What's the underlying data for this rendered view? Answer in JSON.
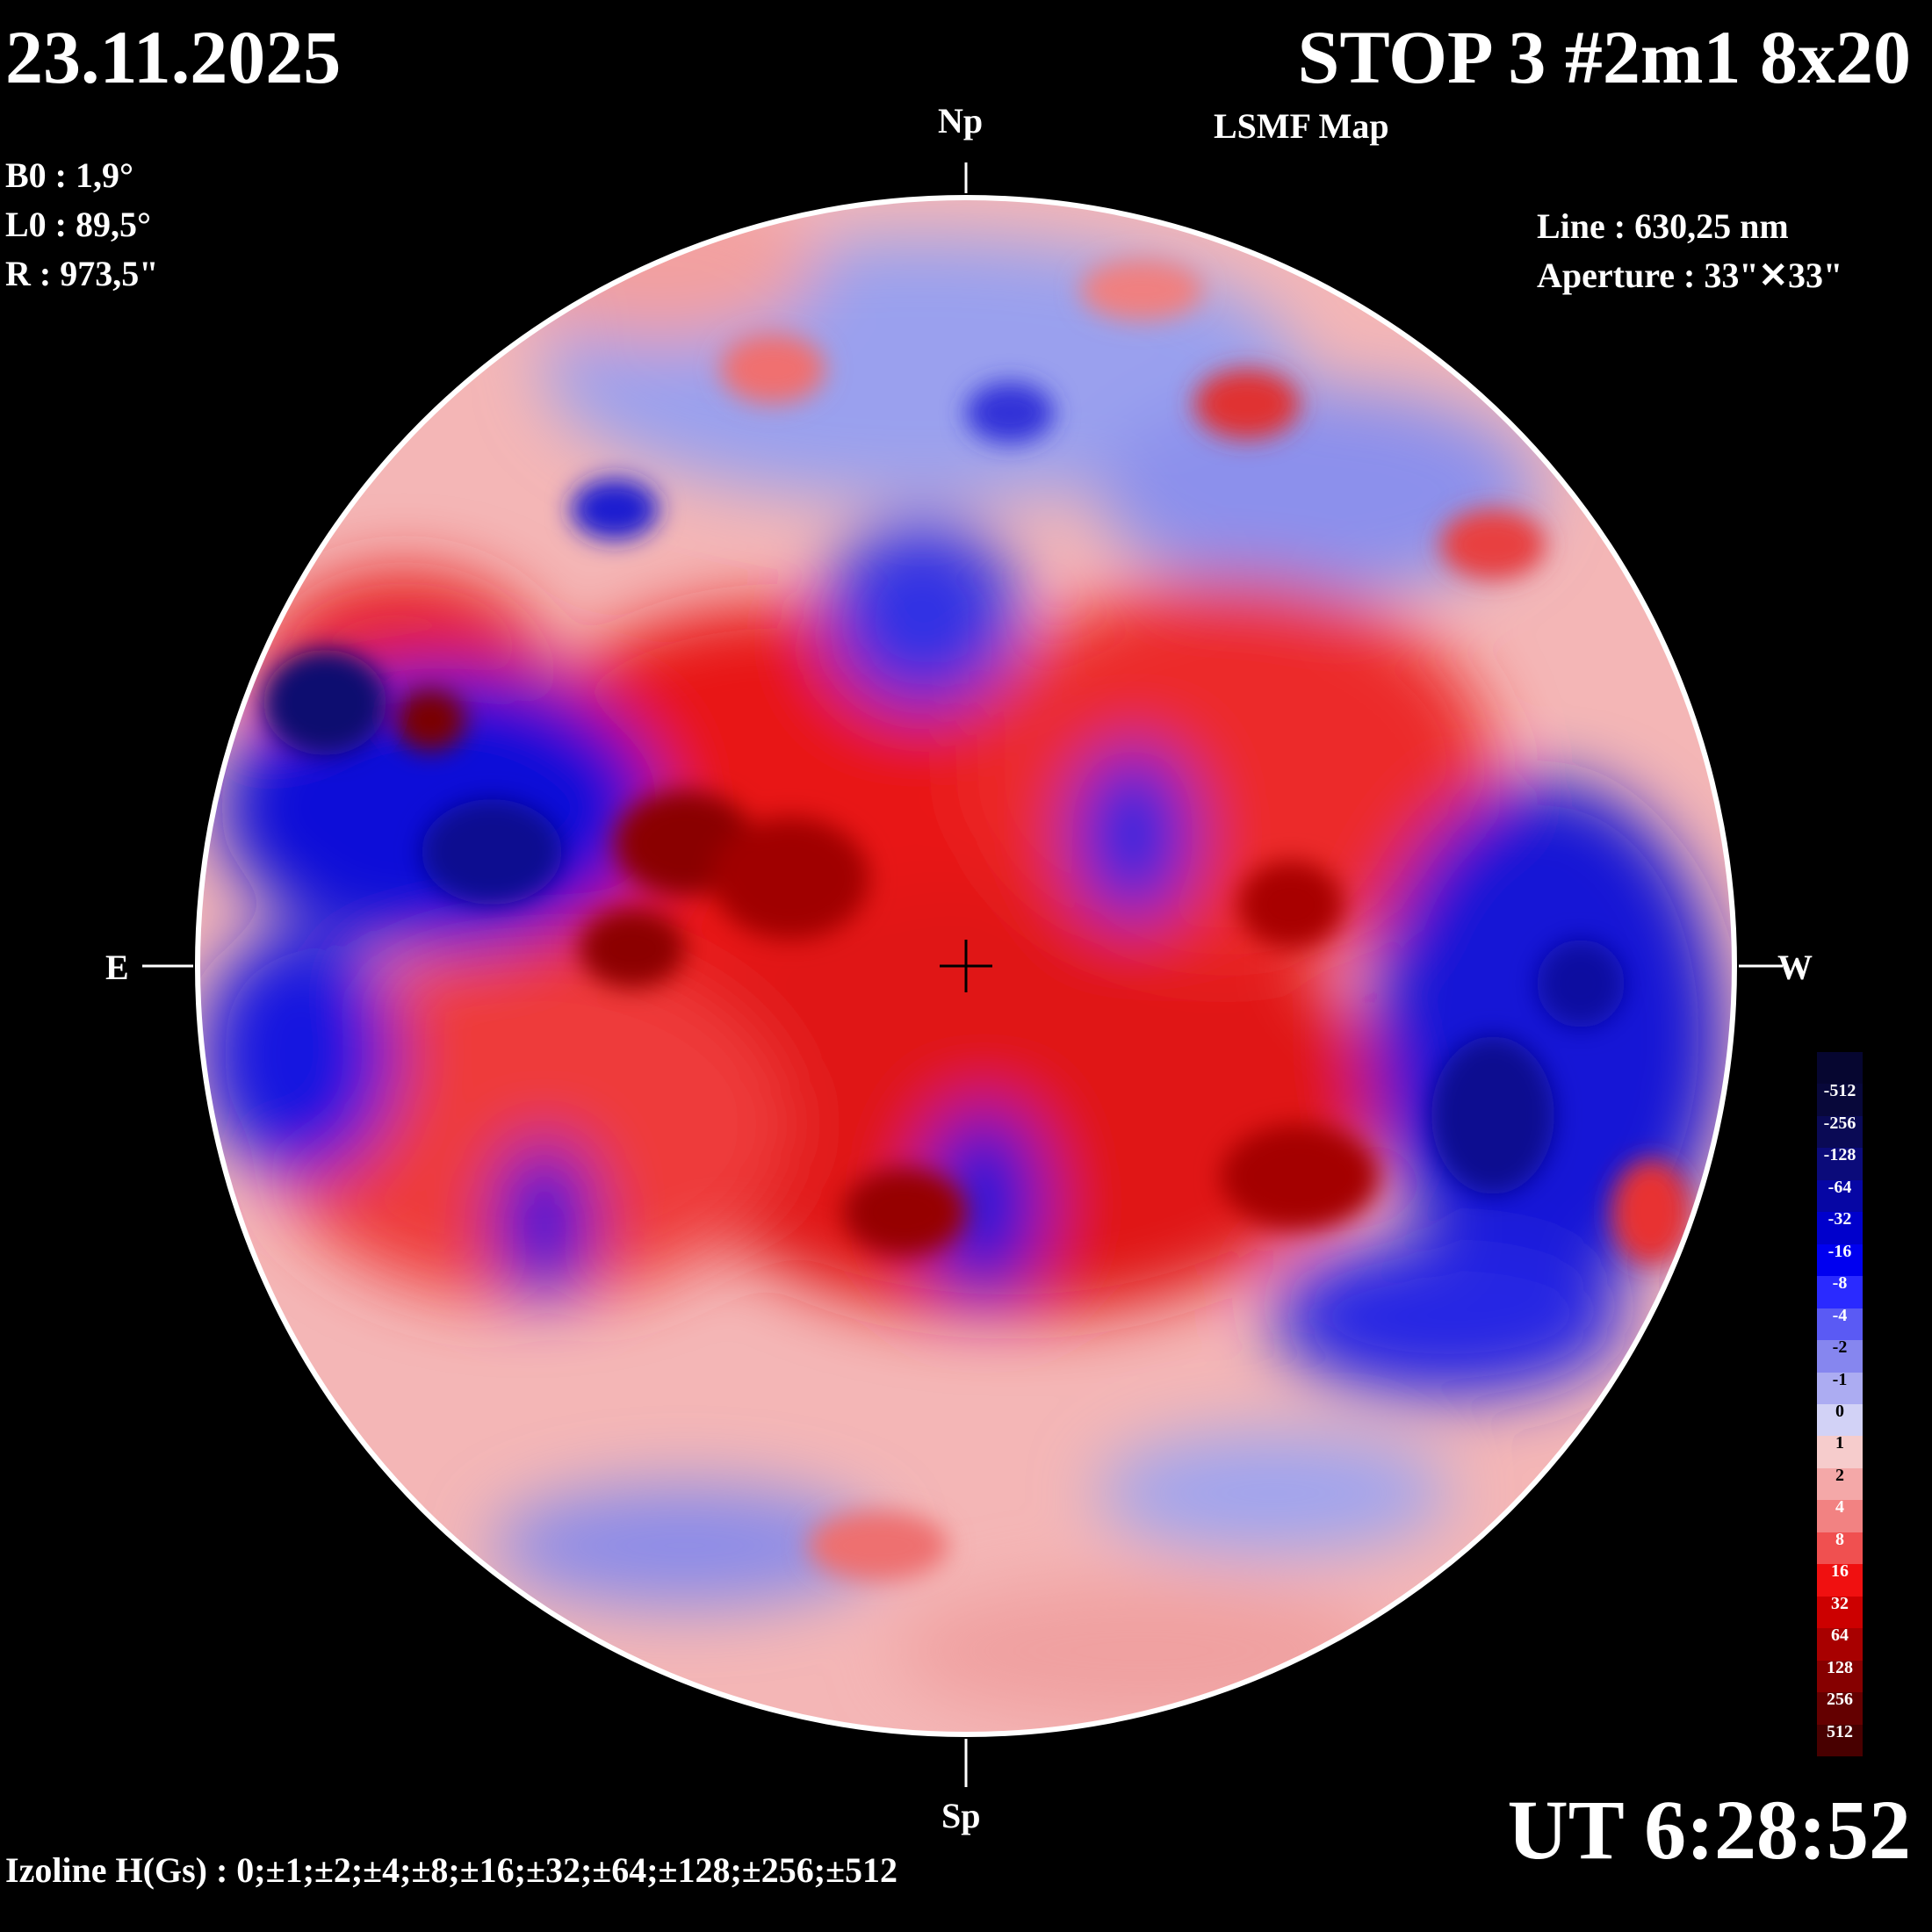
{
  "header": {
    "date": "23.11.2025",
    "title": "STOP 3 #2m1 8x20",
    "subtitle": "LSMF  Map"
  },
  "params": {
    "b0": "B0 : 1,9°",
    "l0": "L0 : 89,5°",
    "r": "R  : 973,5\""
  },
  "instrument": {
    "line": "Line :  630,25 nm",
    "aperture": "Aperture : 33\"✕33\""
  },
  "directions": {
    "north": "Np",
    "south": "Sp",
    "east": "E",
    "west": "W"
  },
  "time": "UT 6:28:52",
  "isolines": "Izoline H(Gs) : 0;±1;±2;±4;±8;±16;±32;±64;±128;±256;±512",
  "colors": {
    "positive": "#e00000",
    "negative": "#0000e0",
    "background": "#000000",
    "contour": "#ffffff"
  },
  "legend": {
    "labels": [
      "-512",
      "-256",
      "-128",
      "-64",
      "-32",
      "-16",
      "-8",
      "-4",
      "-2",
      "-1",
      "0",
      "1",
      "2",
      "4",
      "8",
      "16",
      "32",
      "64",
      "128",
      "256",
      "512"
    ],
    "colors": [
      "#08083a",
      "#0a0a55",
      "#0b0b7a",
      "#0606a4",
      "#0000cc",
      "#0000f0",
      "#2a2aff",
      "#5a5af4",
      "#8686ef",
      "#acacf2",
      "#d2d2f6",
      "#f6cccc",
      "#f4a8a8",
      "#f28282",
      "#f05050",
      "#f01010",
      "#cc0000",
      "#a80000",
      "#860000",
      "#640000",
      "#480000"
    ]
  }
}
